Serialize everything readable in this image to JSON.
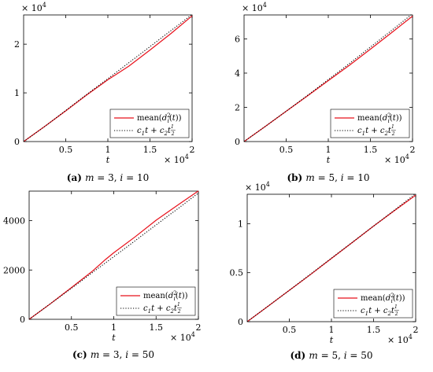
{
  "chart_data": [
    {
      "type": "line",
      "caption_label": "(a)",
      "caption_text": "m = 3, i = 10",
      "xlabel": "t",
      "x_multiplier": "× 10^4",
      "y_multiplier": "× 10^4",
      "xlim": [
        0,
        2
      ],
      "ylim": [
        0,
        2.6
      ],
      "xticks": [
        "0.5",
        "1",
        "1.5",
        "2"
      ],
      "yticks": [
        "0",
        "1",
        "2"
      ],
      "legend_position": "bottom-right",
      "series": [
        {
          "name": "mean(d_i^2(t))",
          "style": "solid",
          "color": "#e8101a",
          "x": [
            0,
            0.25,
            0.5,
            0.75,
            1.0,
            1.1,
            1.25,
            1.5,
            1.75,
            2.0
          ],
          "y": [
            0,
            0.31,
            0.63,
            0.96,
            1.27,
            1.38,
            1.55,
            1.88,
            2.22,
            2.58
          ]
        },
        {
          "name": "c1 t + c2 t^(1/2)",
          "style": "dotted",
          "color": "#000000",
          "x": [
            0,
            0.25,
            0.5,
            0.75,
            1.0,
            1.25,
            1.5,
            1.75,
            2.0
          ],
          "y": [
            0,
            0.31,
            0.64,
            0.97,
            1.29,
            1.62,
            1.95,
            2.28,
            2.61
          ]
        }
      ]
    },
    {
      "type": "line",
      "caption_label": "(b)",
      "caption_text": "m = 5, i = 10",
      "xlabel": "t",
      "x_multiplier": "× 10^4",
      "y_multiplier": "× 10^4",
      "xlim": [
        0,
        2
      ],
      "ylim": [
        0,
        7.4
      ],
      "xticks": [
        "0.5",
        "1",
        "1.5",
        "2"
      ],
      "yticks": [
        "0",
        "2",
        "4",
        "6"
      ],
      "legend_position": "bottom-right",
      "series": [
        {
          "name": "mean(d_i^2(t))",
          "style": "solid",
          "color": "#e8101a",
          "x": [
            0,
            0.25,
            0.5,
            0.75,
            1.0,
            1.25,
            1.5,
            1.75,
            2.0
          ],
          "y": [
            0,
            0.88,
            1.77,
            2.66,
            3.56,
            4.46,
            5.4,
            6.36,
            7.33
          ]
        },
        {
          "name": "c1 t + c2 t^(1/2)",
          "style": "dotted",
          "color": "#000000",
          "x": [
            0,
            0.25,
            0.5,
            0.75,
            1.0,
            1.25,
            1.5,
            1.75,
            2.0
          ],
          "y": [
            0,
            0.88,
            1.78,
            2.69,
            3.62,
            4.56,
            5.52,
            6.49,
            7.47
          ]
        }
      ]
    },
    {
      "type": "line",
      "caption_label": "(c)",
      "caption_text": "m = 3, i = 50",
      "xlabel": "t",
      "x_multiplier": "× 10^4",
      "y_multiplier": "",
      "xlim": [
        0,
        2
      ],
      "ylim": [
        0,
        5200
      ],
      "xticks": [
        "0.5",
        "1",
        "1.5",
        "2"
      ],
      "yticks": [
        "0",
        "2000",
        "4000"
      ],
      "legend_position": "bottom-right",
      "series": [
        {
          "name": "mean(d_i^2(t))",
          "style": "solid",
          "color": "#e8101a",
          "x": [
            0,
            0.25,
            0.5,
            0.75,
            0.9,
            1.0,
            1.25,
            1.5,
            1.75,
            2.0
          ],
          "y": [
            0,
            630,
            1290,
            1960,
            2420,
            2700,
            3340,
            4020,
            4620,
            5210
          ]
        },
        {
          "name": "c1 t + c2 t^(1/2)",
          "style": "dotted",
          "color": "#000000",
          "x": [
            0,
            0.25,
            0.5,
            0.75,
            1.0,
            1.25,
            1.5,
            1.75,
            2.0
          ],
          "y": [
            0,
            630,
            1260,
            1900,
            2540,
            3180,
            3830,
            4470,
            5120
          ]
        }
      ]
    },
    {
      "type": "line",
      "caption_label": "(d)",
      "caption_text": "m = 5, i = 50",
      "xlabel": "t",
      "x_multiplier": "× 10^4",
      "y_multiplier": "× 10^4",
      "xlim": [
        0,
        2
      ],
      "ylim": [
        0,
        1.3
      ],
      "xticks": [
        "0.5",
        "1",
        "1.5",
        "2"
      ],
      "yticks": [
        "0",
        "0.5",
        "1"
      ],
      "legend_position": "bottom-right",
      "series": [
        {
          "name": "mean(d_i^2(t))",
          "style": "solid",
          "color": "#e8101a",
          "x": [
            0,
            0.25,
            0.5,
            0.75,
            1.0,
            1.25,
            1.5,
            1.75,
            2.0
          ],
          "y": [
            0,
            0.16,
            0.32,
            0.48,
            0.645,
            0.81,
            0.975,
            1.135,
            1.29
          ]
        },
        {
          "name": "c1 t + c2 t^(1/2)",
          "style": "dotted",
          "color": "#000000",
          "x": [
            0,
            0.25,
            0.5,
            0.75,
            1.0,
            1.25,
            1.5,
            1.75,
            2.0
          ],
          "y": [
            0,
            0.16,
            0.32,
            0.485,
            0.648,
            0.812,
            0.976,
            1.14,
            1.305
          ]
        }
      ]
    }
  ]
}
